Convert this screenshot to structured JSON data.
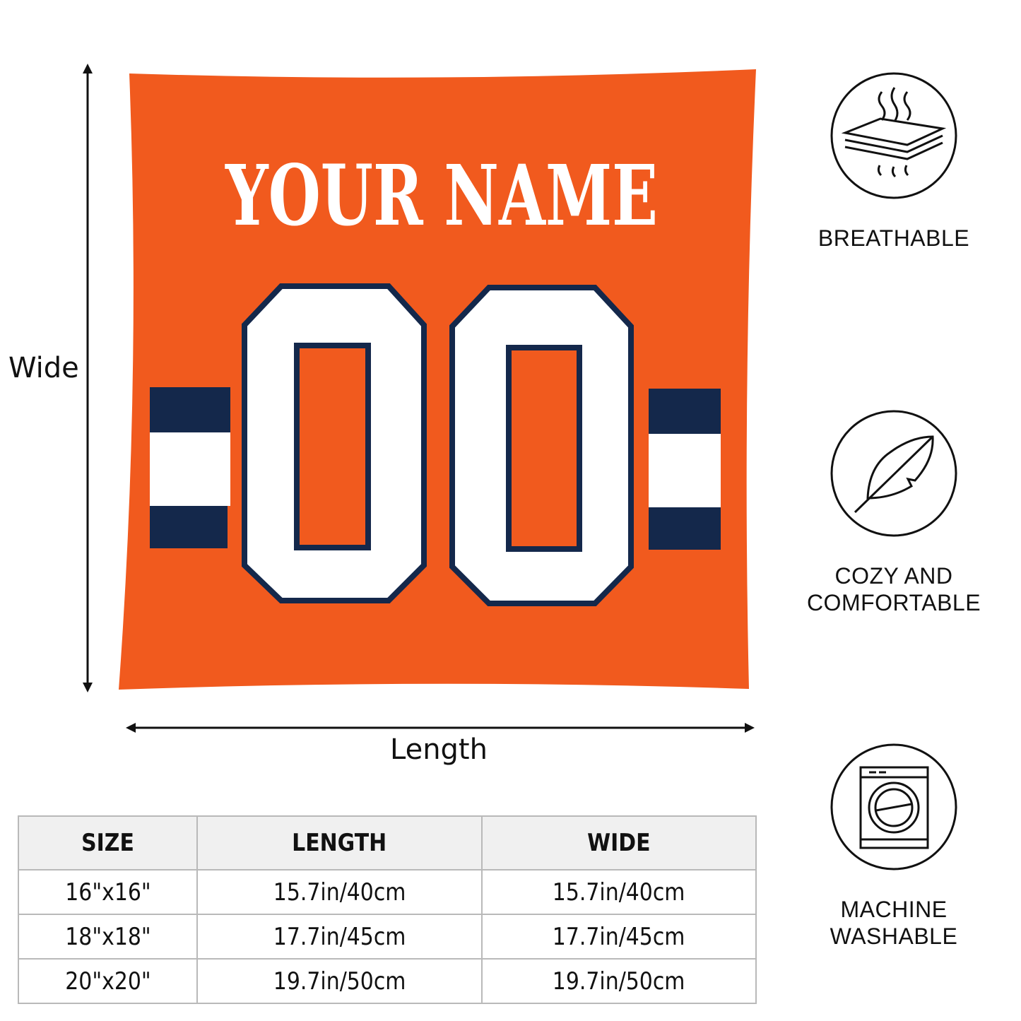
{
  "pillow": {
    "name_text": "YOUR NAME",
    "number_text": "00",
    "colors": {
      "body": "#f15a1e",
      "stripe_navy": "#14284b",
      "stripe_white": "#ffffff",
      "text": "#ffffff"
    }
  },
  "dimensions": {
    "vertical_label": "Wide",
    "horizontal_label": "Length"
  },
  "features": [
    {
      "icon": "breathable-layers-icon",
      "label": "BREATHABLE"
    },
    {
      "icon": "feather-icon",
      "label_line1": "COZY AND",
      "label_line2": "COMFORTABLE"
    },
    {
      "icon": "washing-machine-icon",
      "label_line1": "MACHINE",
      "label_line2": "WASHABLE"
    }
  ],
  "size_table": {
    "headers": [
      "SIZE",
      "LENGTH",
      "WIDE"
    ],
    "rows": [
      [
        "16\"x16\"",
        "15.7in/40cm",
        "15.7in/40cm"
      ],
      [
        "18\"x18\"",
        "17.7in/45cm",
        "17.7in/45cm"
      ],
      [
        "20\"x20\"",
        "19.7in/50cm",
        "19.7in/50cm"
      ]
    ]
  }
}
